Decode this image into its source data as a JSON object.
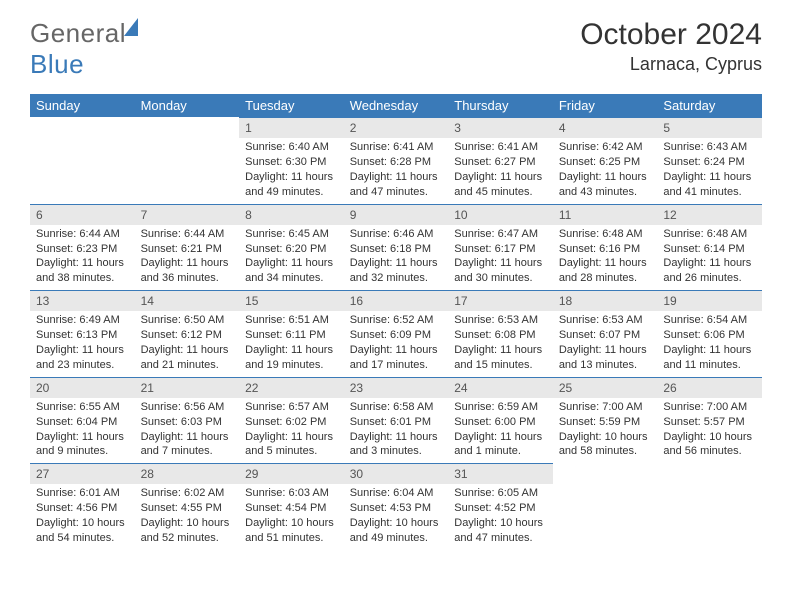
{
  "brand": {
    "part1": "General",
    "part2": "Blue"
  },
  "header": {
    "title": "October 2024",
    "location": "Larnaca, Cyprus"
  },
  "colors": {
    "accent": "#3a7ab8",
    "daynum_bg": "#e8e8e8",
    "text": "#333333"
  },
  "weekdays": [
    "Sunday",
    "Monday",
    "Tuesday",
    "Wednesday",
    "Thursday",
    "Friday",
    "Saturday"
  ],
  "leading_blank": 2,
  "trailing_blank": 2,
  "days": [
    {
      "n": "1",
      "sunrise": "6:40 AM",
      "sunset": "6:30 PM",
      "daylight": "11 hours and 49 minutes."
    },
    {
      "n": "2",
      "sunrise": "6:41 AM",
      "sunset": "6:28 PM",
      "daylight": "11 hours and 47 minutes."
    },
    {
      "n": "3",
      "sunrise": "6:41 AM",
      "sunset": "6:27 PM",
      "daylight": "11 hours and 45 minutes."
    },
    {
      "n": "4",
      "sunrise": "6:42 AM",
      "sunset": "6:25 PM",
      "daylight": "11 hours and 43 minutes."
    },
    {
      "n": "5",
      "sunrise": "6:43 AM",
      "sunset": "6:24 PM",
      "daylight": "11 hours and 41 minutes."
    },
    {
      "n": "6",
      "sunrise": "6:44 AM",
      "sunset": "6:23 PM",
      "daylight": "11 hours and 38 minutes."
    },
    {
      "n": "7",
      "sunrise": "6:44 AM",
      "sunset": "6:21 PM",
      "daylight": "11 hours and 36 minutes."
    },
    {
      "n": "8",
      "sunrise": "6:45 AM",
      "sunset": "6:20 PM",
      "daylight": "11 hours and 34 minutes."
    },
    {
      "n": "9",
      "sunrise": "6:46 AM",
      "sunset": "6:18 PM",
      "daylight": "11 hours and 32 minutes."
    },
    {
      "n": "10",
      "sunrise": "6:47 AM",
      "sunset": "6:17 PM",
      "daylight": "11 hours and 30 minutes."
    },
    {
      "n": "11",
      "sunrise": "6:48 AM",
      "sunset": "6:16 PM",
      "daylight": "11 hours and 28 minutes."
    },
    {
      "n": "12",
      "sunrise": "6:48 AM",
      "sunset": "6:14 PM",
      "daylight": "11 hours and 26 minutes."
    },
    {
      "n": "13",
      "sunrise": "6:49 AM",
      "sunset": "6:13 PM",
      "daylight": "11 hours and 23 minutes."
    },
    {
      "n": "14",
      "sunrise": "6:50 AM",
      "sunset": "6:12 PM",
      "daylight": "11 hours and 21 minutes."
    },
    {
      "n": "15",
      "sunrise": "6:51 AM",
      "sunset": "6:11 PM",
      "daylight": "11 hours and 19 minutes."
    },
    {
      "n": "16",
      "sunrise": "6:52 AM",
      "sunset": "6:09 PM",
      "daylight": "11 hours and 17 minutes."
    },
    {
      "n": "17",
      "sunrise": "6:53 AM",
      "sunset": "6:08 PM",
      "daylight": "11 hours and 15 minutes."
    },
    {
      "n": "18",
      "sunrise": "6:53 AM",
      "sunset": "6:07 PM",
      "daylight": "11 hours and 13 minutes."
    },
    {
      "n": "19",
      "sunrise": "6:54 AM",
      "sunset": "6:06 PM",
      "daylight": "11 hours and 11 minutes."
    },
    {
      "n": "20",
      "sunrise": "6:55 AM",
      "sunset": "6:04 PM",
      "daylight": "11 hours and 9 minutes."
    },
    {
      "n": "21",
      "sunrise": "6:56 AM",
      "sunset": "6:03 PM",
      "daylight": "11 hours and 7 minutes."
    },
    {
      "n": "22",
      "sunrise": "6:57 AM",
      "sunset": "6:02 PM",
      "daylight": "11 hours and 5 minutes."
    },
    {
      "n": "23",
      "sunrise": "6:58 AM",
      "sunset": "6:01 PM",
      "daylight": "11 hours and 3 minutes."
    },
    {
      "n": "24",
      "sunrise": "6:59 AM",
      "sunset": "6:00 PM",
      "daylight": "11 hours and 1 minute."
    },
    {
      "n": "25",
      "sunrise": "7:00 AM",
      "sunset": "5:59 PM",
      "daylight": "10 hours and 58 minutes."
    },
    {
      "n": "26",
      "sunrise": "7:00 AM",
      "sunset": "5:57 PM",
      "daylight": "10 hours and 56 minutes."
    },
    {
      "n": "27",
      "sunrise": "6:01 AM",
      "sunset": "4:56 PM",
      "daylight": "10 hours and 54 minutes."
    },
    {
      "n": "28",
      "sunrise": "6:02 AM",
      "sunset": "4:55 PM",
      "daylight": "10 hours and 52 minutes."
    },
    {
      "n": "29",
      "sunrise": "6:03 AM",
      "sunset": "4:54 PM",
      "daylight": "10 hours and 51 minutes."
    },
    {
      "n": "30",
      "sunrise": "6:04 AM",
      "sunset": "4:53 PM",
      "daylight": "10 hours and 49 minutes."
    },
    {
      "n": "31",
      "sunrise": "6:05 AM",
      "sunset": "4:52 PM",
      "daylight": "10 hours and 47 minutes."
    }
  ],
  "labels": {
    "sunrise": "Sunrise:",
    "sunset": "Sunset:",
    "daylight": "Daylight:"
  }
}
